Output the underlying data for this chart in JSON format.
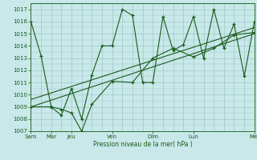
{
  "bg_color": "#c8e8ea",
  "grid_color": "#a0c8c8",
  "line_color": "#1a5c1a",
  "xlabel": "Pression niveau de la mer( hPa )",
  "ylim": [
    1007,
    1017.5
  ],
  "yticks": [
    1007,
    1008,
    1009,
    1010,
    1011,
    1012,
    1013,
    1014,
    1015,
    1016,
    1017
  ],
  "xtick_positions": [
    0,
    1,
    2,
    4,
    6,
    8,
    11
  ],
  "xtick_labels": [
    "Sam",
    "Mar",
    "Jeu",
    "Ven",
    "Dim",
    "Lun",
    "Mer"
  ],
  "xlim": [
    0,
    11
  ],
  "series1_x": [
    0,
    0.5,
    1,
    1.5,
    2,
    2.5,
    3,
    3.5,
    4,
    4.5,
    5,
    5.5,
    6,
    6.5,
    7,
    7.5,
    8,
    8.5,
    9,
    9.5,
    10,
    10.5,
    11
  ],
  "series1_y": [
    1016.0,
    1013.2,
    1009.0,
    1008.3,
    1010.5,
    1008.0,
    1011.6,
    1014.0,
    1014.0,
    1017.0,
    1016.5,
    1011.0,
    1011.0,
    1016.4,
    1013.6,
    1014.1,
    1016.4,
    1013.0,
    1017.0,
    1013.8,
    1015.8,
    1011.5,
    1016.0
  ],
  "series2_x": [
    0,
    1,
    1.5,
    2,
    2.5,
    3,
    4,
    5,
    6,
    7,
    8,
    9,
    10,
    11
  ],
  "series2_y": [
    1009.0,
    1009.0,
    1008.8,
    1008.5,
    1007.0,
    1009.2,
    1011.1,
    1011.0,
    1013.0,
    1013.8,
    1013.1,
    1013.8,
    1014.9,
    1015.1
  ],
  "trend1_x": [
    0,
    11
  ],
  "trend1_y": [
    1009.0,
    1015.0
  ],
  "trend2_x": [
    0,
    11
  ],
  "trend2_y": [
    1009.6,
    1015.5
  ]
}
